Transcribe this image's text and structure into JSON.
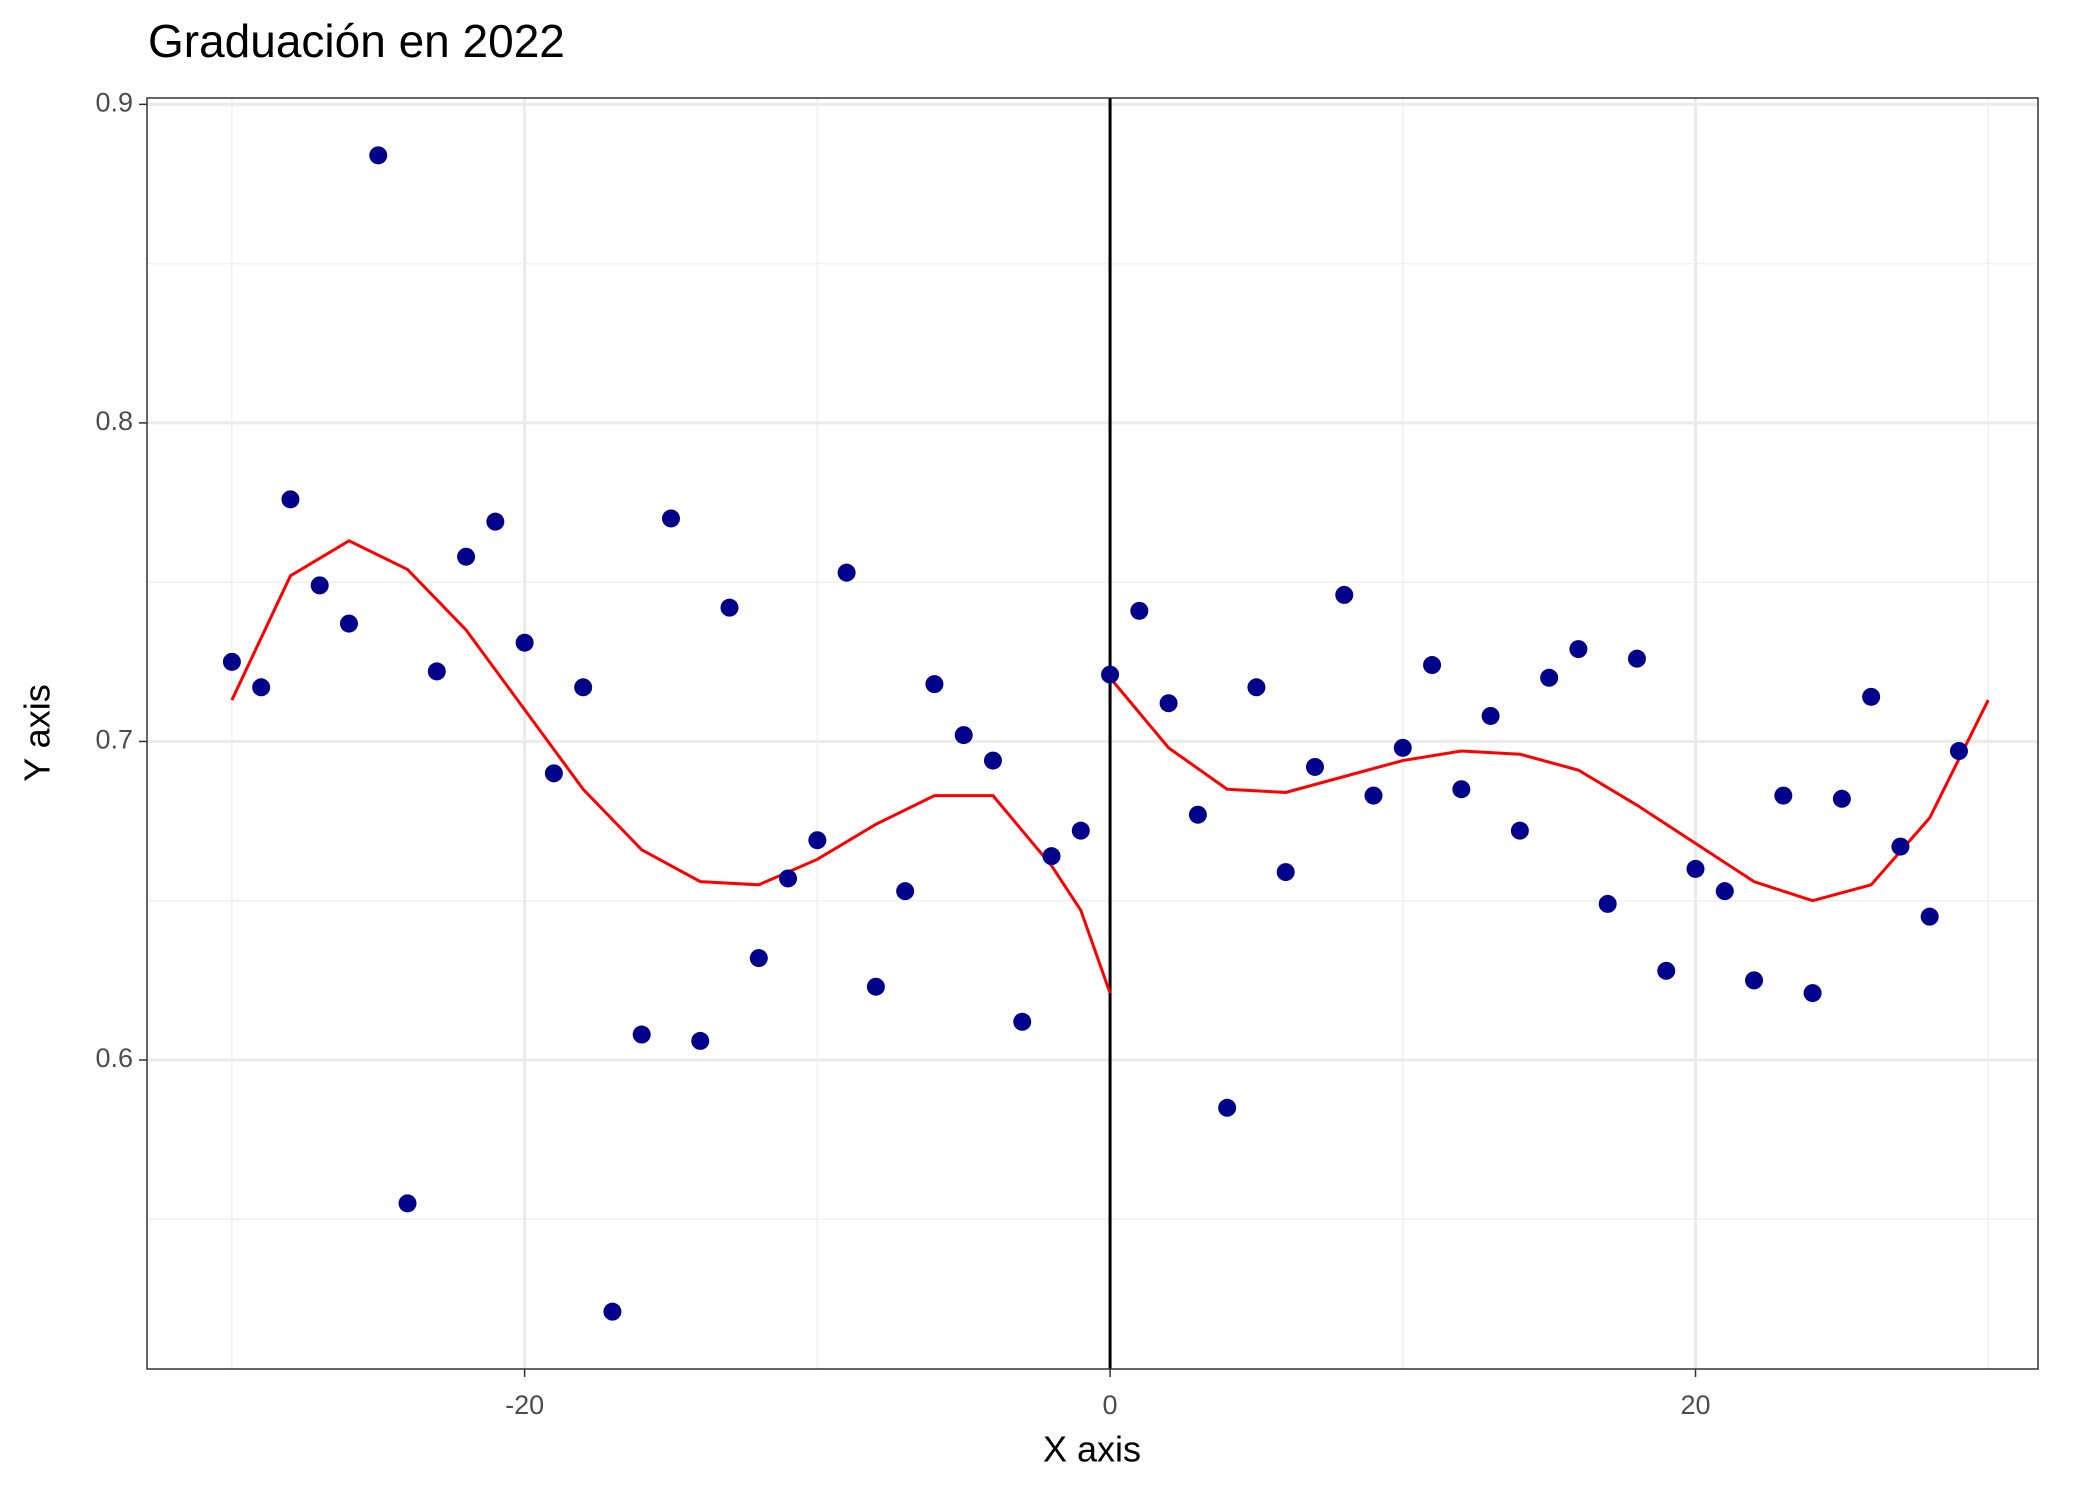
{
  "chart_data": {
    "type": "scatter",
    "title": "Graduación en 2022",
    "x_label": "X axis",
    "y_label": "Y axis",
    "x": [
      -30,
      -29,
      -28,
      -27,
      -26,
      -25,
      -24,
      -23,
      -22,
      -21,
      -20,
      -19,
      -18,
      -17,
      -16,
      -15,
      -14,
      -13,
      -12,
      -11,
      -10,
      -9,
      -8,
      -7,
      -6,
      -5,
      -4,
      -3,
      -2,
      -1,
      0,
      1,
      2,
      3,
      4,
      5,
      6,
      7,
      8,
      9,
      10,
      11,
      12,
      13,
      14,
      15,
      16,
      17,
      18,
      19,
      20,
      21,
      22,
      23,
      24,
      25,
      26,
      27,
      28,
      29
    ],
    "values": [
      0.725,
      0.717,
      0.776,
      0.749,
      0.737,
      0.884,
      0.555,
      0.722,
      0.758,
      0.769,
      0.731,
      0.69,
      0.717,
      0.521,
      0.608,
      0.77,
      0.606,
      0.742,
      0.632,
      0.657,
      0.669,
      0.753,
      0.623,
      0.653,
      0.718,
      0.702,
      0.694,
      0.612,
      0.664,
      0.672,
      0.721,
      0.741,
      0.712,
      0.677,
      0.585,
      0.717,
      0.659,
      0.692,
      0.746,
      0.683,
      0.698,
      0.724,
      0.685,
      0.708,
      0.672,
      0.72,
      0.729,
      0.649,
      0.726,
      0.628,
      0.66,
      0.653,
      0.625,
      0.683,
      0.621,
      0.682,
      0.714,
      0.667,
      0.645,
      0.697
    ],
    "color": "#00008b",
    "fits": [
      {
        "color": "#ff0000",
        "x": [
          -30,
          -28,
          -26,
          -24,
          -22,
          -20,
          -18,
          -16,
          -14,
          -12,
          -10,
          -8,
          -6,
          -4,
          -2,
          -1,
          0
        ],
        "values": [
          0.713,
          0.752,
          0.763,
          0.754,
          0.735,
          0.71,
          0.685,
          0.666,
          0.656,
          0.655,
          0.663,
          0.674,
          0.683,
          0.683,
          0.661,
          0.647,
          0.621
        ]
      },
      {
        "color": "#ff0000",
        "x": [
          0,
          2,
          4,
          6,
          8,
          10,
          12,
          14,
          16,
          18,
          20,
          22,
          24,
          26,
          28,
          30
        ],
        "values": [
          0.72,
          0.698,
          0.685,
          0.684,
          0.689,
          0.694,
          0.697,
          0.696,
          0.691,
          0.68,
          0.668,
          0.656,
          0.65,
          0.655,
          0.676,
          0.713
        ]
      }
    ],
    "vline": 0,
    "xlim": [
      -32.9,
      31.7
    ],
    "ylim": [
      0.503,
      0.902
    ],
    "xticks": [
      -20,
      0,
      20
    ],
    "yticks": [
      0.6,
      0.7,
      0.8,
      0.9
    ],
    "xminor": [
      -30,
      -10,
      10,
      30
    ],
    "yminor": [
      0.55,
      0.65,
      0.75,
      0.85
    ],
    "grid": true
  }
}
